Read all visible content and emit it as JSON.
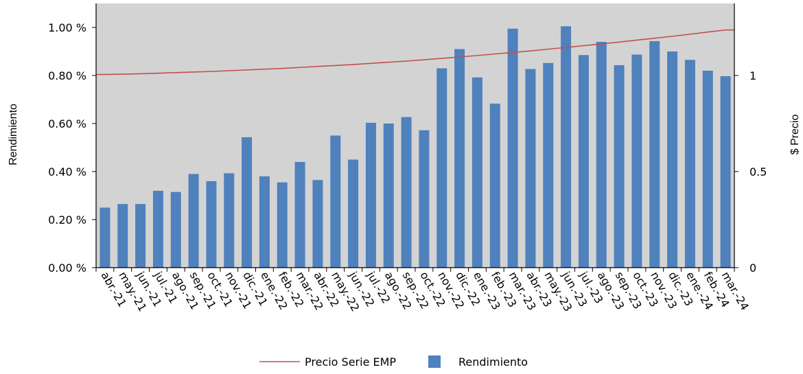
{
  "chart_data": {
    "type": "bar",
    "categories": [
      "abr.-21",
      "may.-21",
      "jun.-21",
      "jul.-21",
      "ago.-21",
      "sep.-21",
      "oct.-21",
      "nov.-21",
      "dic.-21",
      "ene.-22",
      "feb.-22",
      "mar.-22",
      "abr.-22",
      "may.-22",
      "jun.-22",
      "jul.-22",
      "ago.-22",
      "sep.-22",
      "oct.-22",
      "nov.-22",
      "dic.-22",
      "ene.-23",
      "feb.-23",
      "mar.-23",
      "abr.-23",
      "may.-23",
      "jun.-23",
      "jul.-23",
      "ago.-23",
      "sep.-23",
      "oct.-23",
      "nov.-23",
      "dic.-23",
      "ene.-24",
      "feb.-24",
      "mar.-24"
    ],
    "series": [
      {
        "name": "Rendimiento",
        "type": "bar",
        "axis": "left",
        "color": "#4F81BD",
        "values": [
          0.25,
          0.265,
          0.265,
          0.32,
          0.315,
          0.39,
          0.36,
          0.393,
          0.543,
          0.38,
          0.355,
          0.44,
          0.365,
          0.55,
          0.45,
          0.603,
          0.6,
          0.627,
          0.572,
          0.83,
          0.91,
          0.792,
          0.683,
          0.995,
          0.827,
          0.852,
          1.005,
          0.885,
          0.94,
          0.843,
          0.887,
          0.943,
          0.9,
          0.865,
          0.82,
          0.797
        ]
      },
      {
        "name": "Precio Serie EMP",
        "type": "line",
        "axis": "right",
        "color": "#C0504D",
        "values": [
          1.005,
          1.007,
          1.009,
          1.012,
          1.015,
          1.018,
          1.021,
          1.025,
          1.029,
          1.033,
          1.037,
          1.042,
          1.047,
          1.052,
          1.057,
          1.063,
          1.069,
          1.075,
          1.082,
          1.089,
          1.096,
          1.104,
          1.112,
          1.12,
          1.128,
          1.137,
          1.146,
          1.155,
          1.164,
          1.174,
          1.184,
          1.194,
          1.204,
          1.215,
          1.226,
          1.237
        ]
      }
    ],
    "xlabel": "",
    "ylabel": "Rendimiento",
    "y2label": "$ Precio",
    "ylim": [
      0,
      1.1
    ],
    "yticks": [
      0,
      0.2,
      0.4,
      0.6,
      0.8,
      1.0
    ],
    "ytick_labels": [
      "0.00 %",
      "0.20 %",
      "0.40 %",
      "0.60 %",
      "0.80 %",
      "1.00 %"
    ],
    "y2lim": [
      0,
      1.375
    ],
    "y2ticks": [
      0,
      0.5,
      1
    ],
    "y2tick_labels": [
      "0",
      "0.5",
      "1"
    ],
    "plot_background": "#D3D3D3",
    "grid": false,
    "legend_position": "bottom-center",
    "legend": [
      {
        "name": "Precio Serie EMP",
        "marker": "line",
        "color": "#C0504D"
      },
      {
        "name": "Rendimiento",
        "marker": "square",
        "color": "#4F81BD"
      }
    ]
  }
}
